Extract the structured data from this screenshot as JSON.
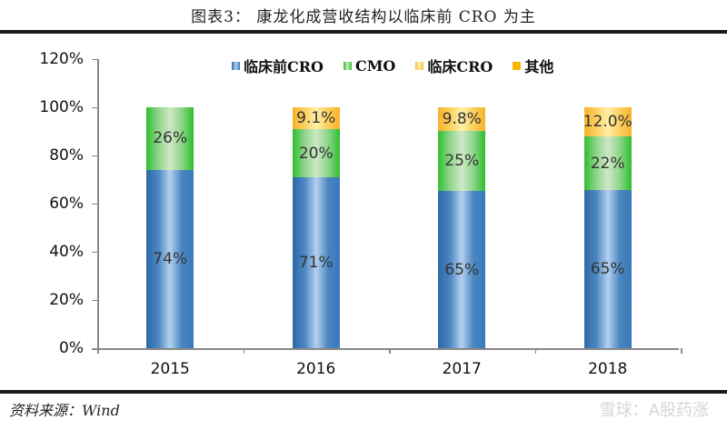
{
  "header": {
    "title": "图表3：  康龙化成营收结构以临床前 CRO 为主"
  },
  "footer": {
    "source": "资料来源：Wind",
    "watermark": "雪球：A股药涨"
  },
  "legend": [
    {
      "label": "临床前CRO",
      "color": "#4a86c2"
    },
    {
      "label": "CMO",
      "color": "#3cc23c"
    },
    {
      "label": "临床CRO",
      "color": "#fbd36a"
    },
    {
      "label": "其他",
      "color": "#f5b800"
    }
  ],
  "yaxis": {
    "ticks": [
      "0%",
      "20%",
      "40%",
      "60%",
      "80%",
      "100%",
      "120%"
    ]
  },
  "xaxis": {
    "labels": [
      "2015",
      "2016",
      "2017",
      "2018"
    ]
  },
  "bars": [
    {
      "year": "2015",
      "segments": [
        {
          "series": "临床前CRO",
          "value": 74,
          "label": "74%"
        },
        {
          "series": "CMO",
          "value": 26,
          "label": "26%"
        }
      ]
    },
    {
      "year": "2016",
      "segments": [
        {
          "series": "临床前CRO",
          "value": 71,
          "label": "71%"
        },
        {
          "series": "CMO",
          "value": 20,
          "label": "20%"
        },
        {
          "series": "其他",
          "value": 9.1,
          "label": "9.1%"
        }
      ]
    },
    {
      "year": "2017",
      "segments": [
        {
          "series": "临床前CRO",
          "value": 65,
          "label": "65%"
        },
        {
          "series": "CMO",
          "value": 25,
          "label": "25%"
        },
        {
          "series": "其他",
          "value": 9.8,
          "label": "9.8%"
        }
      ]
    },
    {
      "year": "2018",
      "segments": [
        {
          "series": "临床前CRO",
          "value": 65,
          "label": "65%"
        },
        {
          "series": "CMO",
          "value": 22,
          "label": "22%"
        },
        {
          "series": "其他",
          "value": 12.0,
          "label": "12.0%"
        }
      ]
    }
  ],
  "chart_data": {
    "type": "bar",
    "stacked": true,
    "title": "图表3：康龙化成营收结构以临床前 CRO 为主",
    "categories": [
      "2015",
      "2016",
      "2017",
      "2018"
    ],
    "series": [
      {
        "name": "临床前CRO",
        "values": [
          74,
          71,
          65,
          65
        ]
      },
      {
        "name": "CMO",
        "values": [
          26,
          20,
          25,
          22
        ]
      },
      {
        "name": "临床CRO",
        "values": [
          0,
          0,
          0,
          0
        ]
      },
      {
        "name": "其他",
        "values": [
          0,
          9.1,
          9.8,
          12.0
        ]
      }
    ],
    "xlabel": "",
    "ylabel": "",
    "ylim": [
      0,
      120
    ],
    "yticks": [
      "0%",
      "20%",
      "40%",
      "60%",
      "80%",
      "100%",
      "120%"
    ],
    "legend_position": "top",
    "grid": false,
    "source": "资料来源：Wind"
  }
}
